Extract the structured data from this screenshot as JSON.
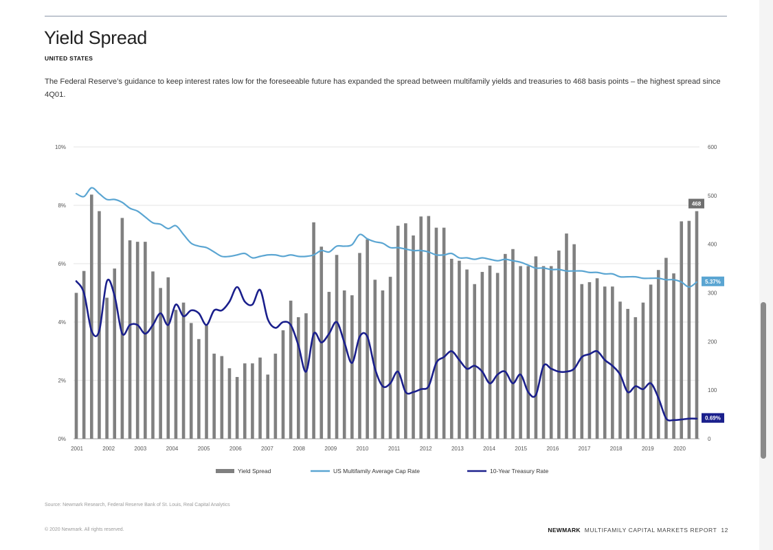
{
  "title": "Yield Spread",
  "subtitle": "UNITED STATES",
  "description": "The Federal Reserve’s guidance to keep interest rates low for the foreseeable future has expanded the spread between multifamily yields and treasuries to 468 basis points – the highest spread since 4Q01.",
  "source": "Source: Newmark Research, Federal Reserve Bank of St. Louis, Real Capital Analytics",
  "copyright": "© 2020 Newmark. All rights reserved.",
  "footer": {
    "brand": "NEWMARK",
    "report": "MULTIFAMILY CAPITAL MARKETS REPORT",
    "page": "12"
  },
  "colors": {
    "bars": "#808080",
    "cap_rate": "#5aa5d2",
    "treasury": "#1a1f8c",
    "grid": "#e3e3e3"
  },
  "chart_data": {
    "type": "bar+line",
    "left_axis": {
      "min": 0,
      "max": 10,
      "ticks": [
        "0%",
        "2%",
        "4%",
        "6%",
        "8%",
        "10%"
      ]
    },
    "right_axis": {
      "min": 0,
      "max": 600,
      "ticks": [
        "0",
        "100",
        "200",
        "300",
        "400",
        "500",
        "600"
      ]
    },
    "years": [
      "2001",
      "2002",
      "2003",
      "2004",
      "2005",
      "2006",
      "2007",
      "2008",
      "2009",
      "2010",
      "2011",
      "2012",
      "2013",
      "2014",
      "2015",
      "2016",
      "2017",
      "2018",
      "2019",
      "2020"
    ],
    "series": [
      {
        "name": "Yield Spread",
        "axis": "right",
        "kind": "bar",
        "values": [
          300,
          345,
          502,
          468,
          290,
          350,
          454,
          408,
          405,
          405,
          344,
          310,
          332,
          265,
          280,
          238,
          205,
          233,
          175,
          170,
          145,
          127,
          155,
          155,
          167,
          132,
          175,
          223,
          284,
          250,
          258,
          445,
          395,
          302,
          378,
          305,
          295,
          382,
          410,
          327,
          305,
          333,
          438,
          443,
          418,
          457,
          458,
          434,
          434,
          370,
          366,
          348,
          318,
          343,
          356,
          341,
          380,
          390,
          355,
          355,
          375,
          355,
          355,
          387,
          422,
          400,
          318,
          322,
          330,
          313,
          313,
          282,
          267,
          250,
          280,
          317,
          347,
          372,
          340,
          447,
          448,
          468
        ]
      },
      {
        "name": "US Multifamily Average Cap Rate",
        "axis": "left",
        "unit": "%",
        "values": [
          8.4,
          8.3,
          8.6,
          8.4,
          8.2,
          8.2,
          8.1,
          7.9,
          7.8,
          7.6,
          7.4,
          7.35,
          7.2,
          7.3,
          7.0,
          6.7,
          6.6,
          6.55,
          6.4,
          6.25,
          6.25,
          6.3,
          6.35,
          6.2,
          6.25,
          6.3,
          6.3,
          6.25,
          6.3,
          6.25,
          6.25,
          6.3,
          6.45,
          6.4,
          6.6,
          6.6,
          6.65,
          7.0,
          6.85,
          6.75,
          6.7,
          6.55,
          6.55,
          6.5,
          6.45,
          6.45,
          6.4,
          6.3,
          6.3,
          6.35,
          6.2,
          6.2,
          6.15,
          6.2,
          6.15,
          6.1,
          6.15,
          6.1,
          6.05,
          5.95,
          5.85,
          5.85,
          5.8,
          5.8,
          5.75,
          5.75,
          5.75,
          5.7,
          5.7,
          5.65,
          5.65,
          5.55,
          5.55,
          5.55,
          5.5,
          5.5,
          5.5,
          5.45,
          5.45,
          5.37,
          5.2,
          5.37
        ]
      },
      {
        "name": "10-Year Treasury Rate",
        "axis": "left",
        "unit": "%",
        "values": [
          5.4,
          5.0,
          3.7,
          3.7,
          5.4,
          4.9,
          3.6,
          3.9,
          3.9,
          3.6,
          3.9,
          4.3,
          3.9,
          4.6,
          4.2,
          4.4,
          4.3,
          3.9,
          4.4,
          4.4,
          4.7,
          5.2,
          4.7,
          4.6,
          5.1,
          4.1,
          3.8,
          4.0,
          3.9,
          3.2,
          2.3,
          3.6,
          3.3,
          3.6,
          4.0,
          3.3,
          2.6,
          3.5,
          3.5,
          2.4,
          1.8,
          1.9,
          2.3,
          1.6,
          1.6,
          1.7,
          1.8,
          2.6,
          2.8,
          3.0,
          2.7,
          2.4,
          2.5,
          2.3,
          1.9,
          2.2,
          2.3,
          1.9,
          2.2,
          1.6,
          1.5,
          2.5,
          2.4,
          2.3,
          2.3,
          2.4,
          2.8,
          2.9,
          3.0,
          2.7,
          2.5,
          2.2,
          1.6,
          1.8,
          1.7,
          1.9,
          1.4,
          0.7,
          0.64,
          0.66,
          0.69,
          0.69
        ]
      }
    ],
    "callouts": {
      "spread_last": "468",
      "cap_rate_last": "5.37%",
      "treasury_last": "0.69%"
    },
    "legend": [
      "Yield Spread",
      "US Multifamily Average Cap Rate",
      "10-Year Treasury Rate"
    ]
  }
}
